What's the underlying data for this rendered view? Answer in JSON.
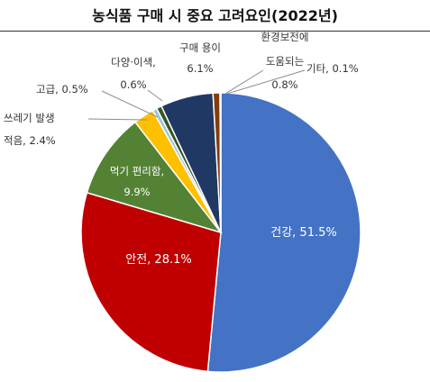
{
  "chart_data": {
    "type": "pie",
    "title": "농식품 구매 시 중요 고려요인(2022년)",
    "unit": "%",
    "slices": [
      {
        "label": "건강",
        "value": 51.5,
        "color": "#4472C4",
        "text": "건강, 51.5%"
      },
      {
        "label": "안전",
        "value": 28.1,
        "color": "#C00000",
        "text": "안전, 28.1%"
      },
      {
        "label": "먹기 편리함",
        "value": 9.9,
        "color": "#548235",
        "text": "먹기 편리함, 9.9%"
      },
      {
        "label": "쓰레기 발생 적음",
        "value": 2.4,
        "color": "#FFC000",
        "text": "쓰레기 발생 적음, 2.4%"
      },
      {
        "label": "고급",
        "value": 0.5,
        "color": "#9DC3E6",
        "text": "고급, 0.5%"
      },
      {
        "label": "다양·이색",
        "value": 0.6,
        "color": "#375623",
        "text": "다양·이색, 0.6%"
      },
      {
        "label": "구매 용이",
        "value": 6.1,
        "color": "#203864",
        "text": "구매 용이 6.1%"
      },
      {
        "label": "환경보전에 도움되는",
        "value": 0.8,
        "color": "#843C0C",
        "text": "환경보전에 도움되는 0.8%"
      },
      {
        "label": "기타",
        "value": 0.1,
        "color": "#7F7F7F",
        "text": "기타, 0.1%"
      }
    ]
  }
}
